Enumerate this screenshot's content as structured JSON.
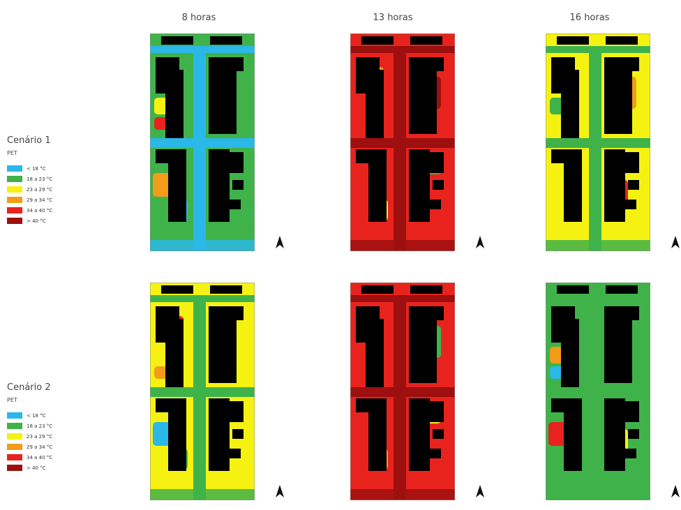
{
  "columns": [
    "8 horas",
    "13 horas",
    "16 horas"
  ],
  "scenarios": [
    {
      "title": "Cenário 1",
      "index_label": "PET"
    },
    {
      "title": "Cenário 2",
      "index_label": "PET"
    }
  ],
  "legend": [
    {
      "label": "< 18 °C",
      "color": "#2ab8e8"
    },
    {
      "label": "18 a 23 °C",
      "color": "#3fb34a"
    },
    {
      "label": "23 a 29 °C",
      "color": "#f5f211"
    },
    {
      "label": "29 a 34 °C",
      "color": "#f39c1a"
    },
    {
      "label": "34 a 40 °C",
      "color": "#e8231d"
    },
    {
      "label": "> 40 °C",
      "color": "#9e0f0f"
    }
  ],
  "maps": [
    {
      "scenario": 1,
      "time": "8 horas",
      "background": "green",
      "street": "blue",
      "patches": [
        "yellow",
        "orange",
        "red",
        "green",
        "blue"
      ]
    },
    {
      "scenario": 1,
      "time": "13 horas",
      "background": "red",
      "street": "darkred",
      "patches": [
        "orange",
        "yellow",
        "green",
        "darkred"
      ]
    },
    {
      "scenario": 1,
      "time": "16 horas",
      "background": "yellow",
      "street": "green",
      "patches": [
        "orange",
        "red",
        "green"
      ]
    },
    {
      "scenario": 2,
      "time": "8 horas",
      "background": "yellow",
      "street": "green",
      "patches": [
        "blue",
        "orange",
        "red",
        "green"
      ]
    },
    {
      "scenario": 2,
      "time": "13 horas",
      "background": "red",
      "street": "darkred",
      "patches": [
        "orange",
        "yellow",
        "green"
      ]
    },
    {
      "scenario": 2,
      "time": "16 horas",
      "background": "green",
      "street": "green",
      "patches": [
        "yellow",
        "orange",
        "red",
        "blue"
      ]
    }
  ]
}
